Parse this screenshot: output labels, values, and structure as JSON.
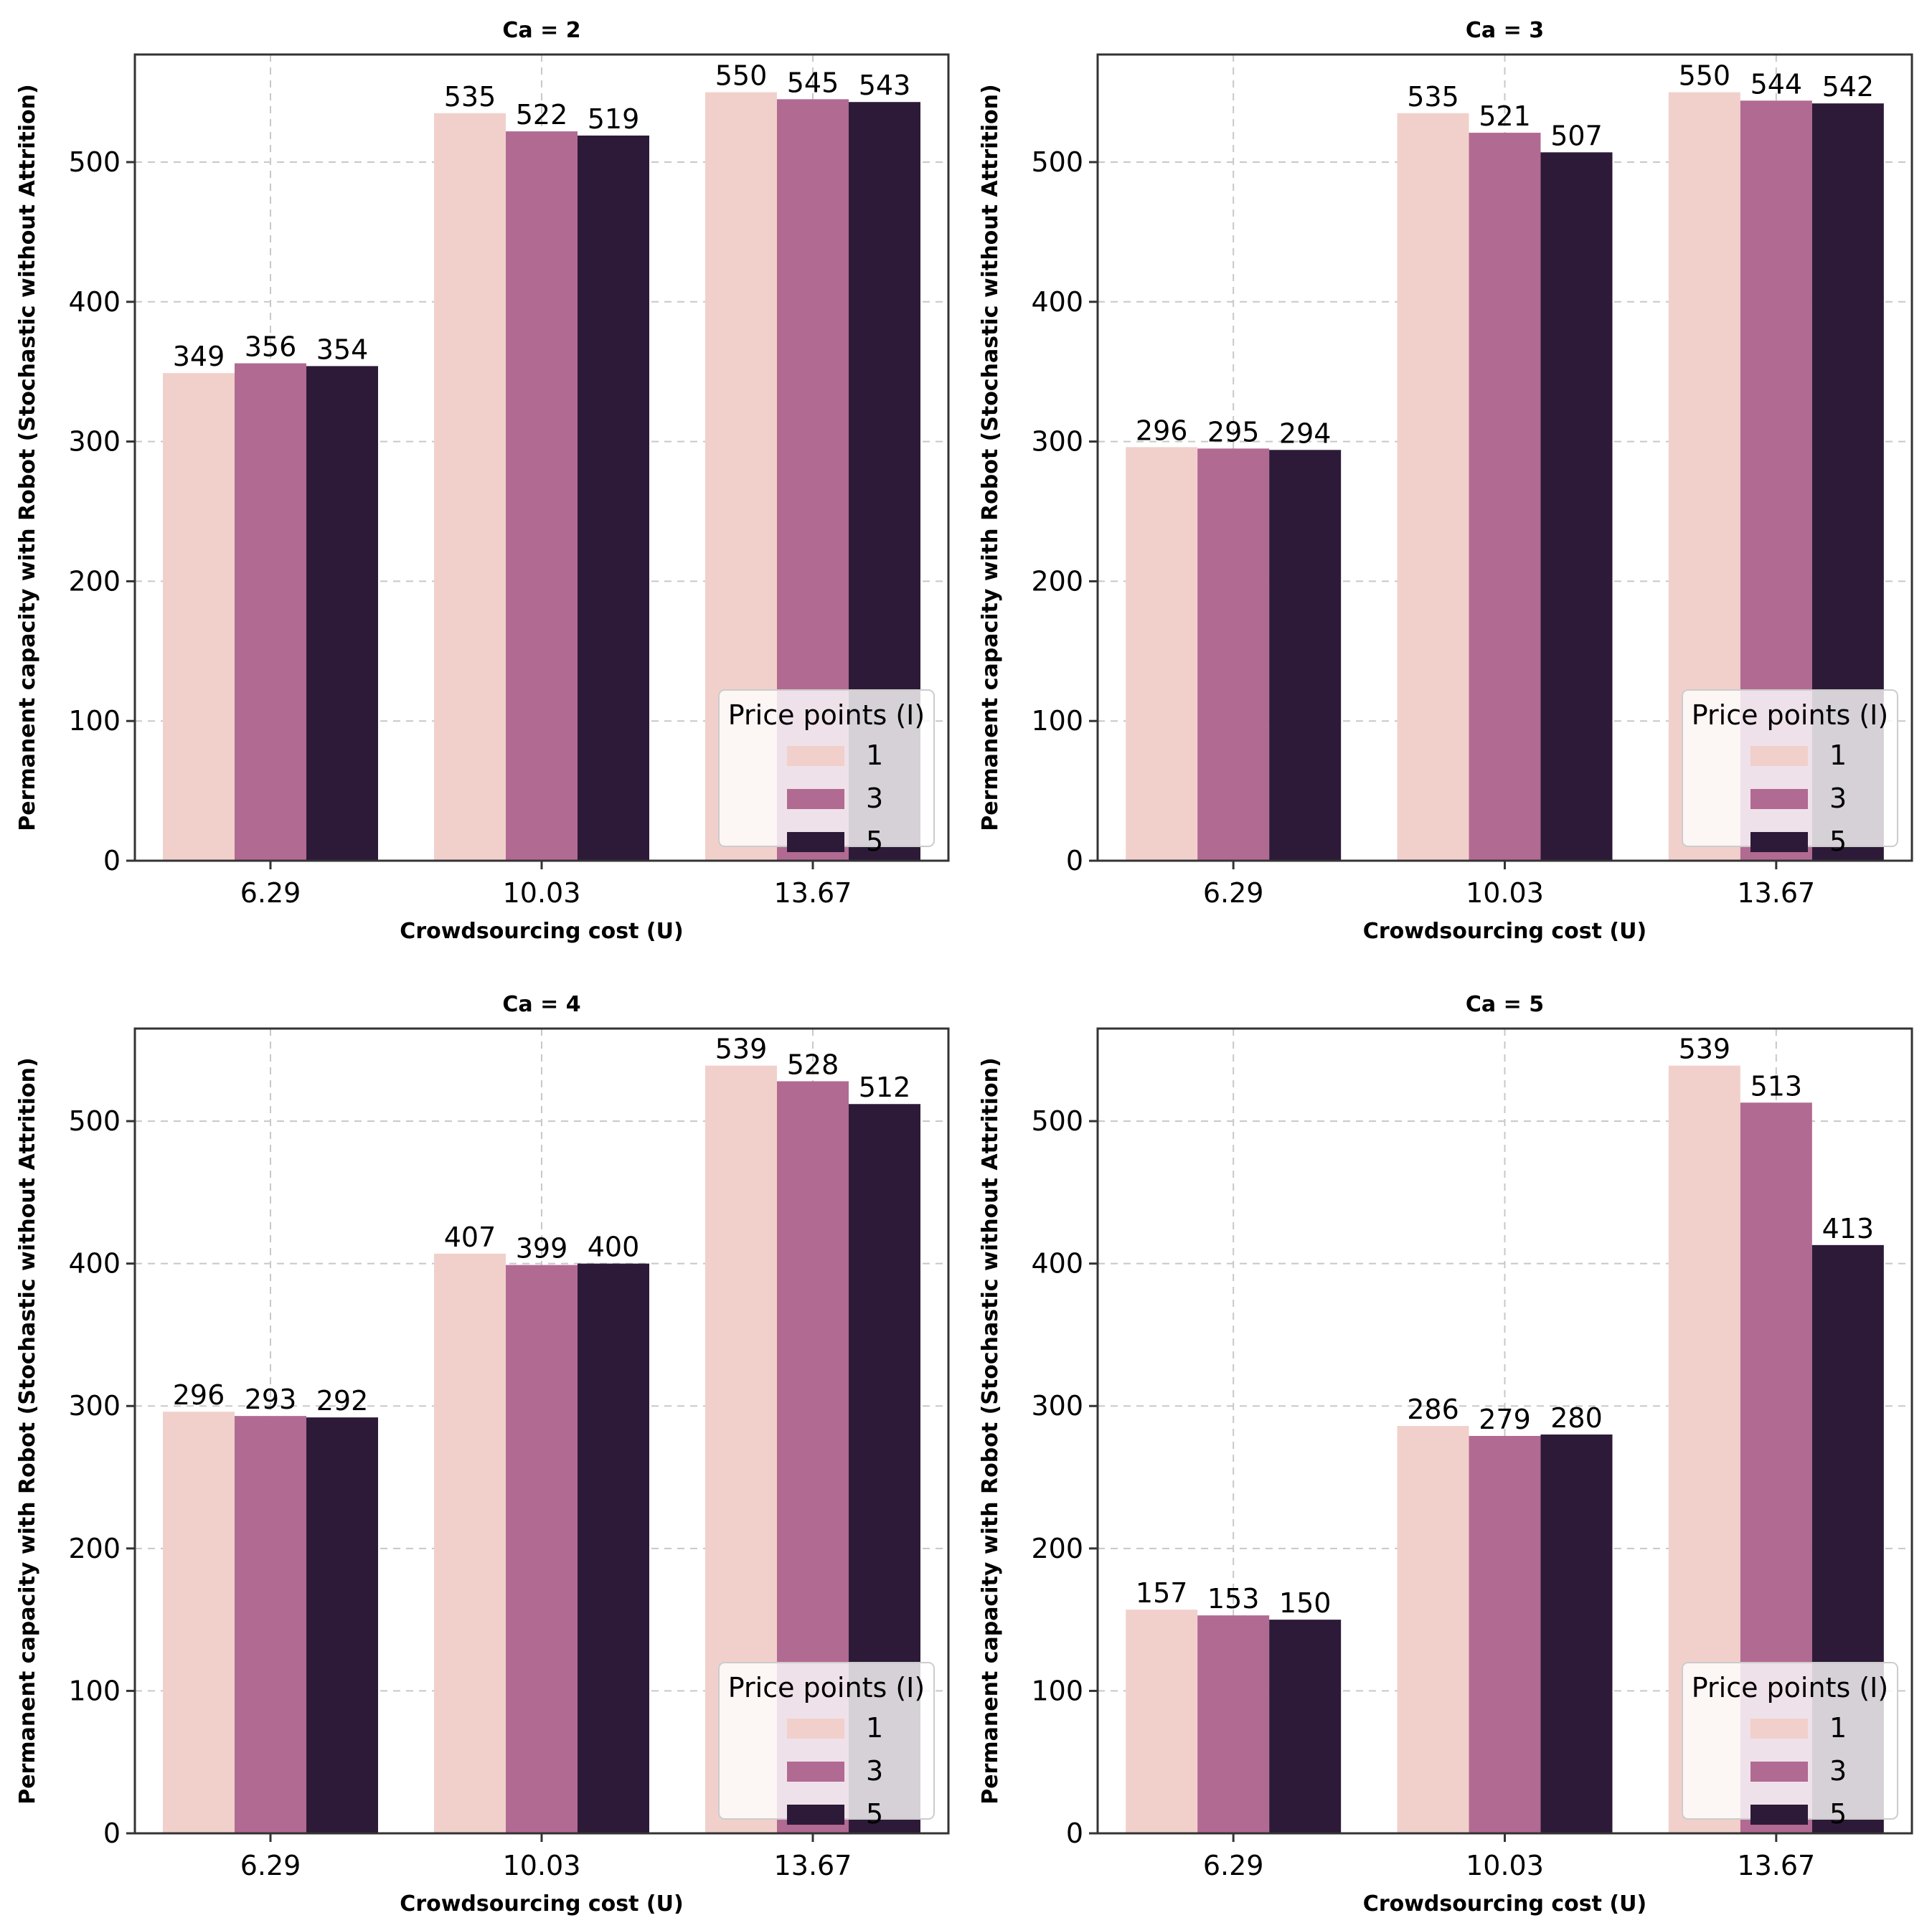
{
  "chart_data": [
    {
      "type": "bar",
      "title": "Ca = 2",
      "xlabel": "Crowdsourcing cost (U)",
      "ylabel": "Permanent capacity with Robot (Stochastic without Attrition)",
      "categories": [
        "6.29",
        "10.03",
        "13.67"
      ],
      "ylim": [
        0,
        577
      ],
      "yticks": [
        0,
        100,
        200,
        300,
        400,
        500
      ],
      "grid": true,
      "legend": {
        "title": "Price points (I)",
        "placement": "lower-right"
      },
      "series": [
        {
          "name": "1",
          "color": "#f1d0cb",
          "values": [
            349,
            535,
            550
          ]
        },
        {
          "name": "3",
          "color": "#b16a92",
          "values": [
            356,
            522,
            545
          ]
        },
        {
          "name": "5",
          "color": "#2d1a38",
          "values": [
            354,
            519,
            543
          ]
        }
      ]
    },
    {
      "type": "bar",
      "title": "Ca = 3",
      "xlabel": "Crowdsourcing cost (U)",
      "ylabel": "Permanent capacity with Robot (Stochastic without Attrition)",
      "categories": [
        "6.29",
        "10.03",
        "13.67"
      ],
      "ylim": [
        0,
        577
      ],
      "yticks": [
        0,
        100,
        200,
        300,
        400,
        500
      ],
      "grid": true,
      "legend": {
        "title": "Price points (I)",
        "placement": "lower-right"
      },
      "series": [
        {
          "name": "1",
          "color": "#f1d0cb",
          "values": [
            296,
            535,
            550
          ]
        },
        {
          "name": "3",
          "color": "#b16a92",
          "values": [
            295,
            521,
            544
          ]
        },
        {
          "name": "5",
          "color": "#2d1a38",
          "values": [
            294,
            507,
            542
          ]
        }
      ]
    },
    {
      "type": "bar",
      "title": "Ca = 4",
      "xlabel": "Crowdsourcing cost (U)",
      "ylabel": "Permanent capacity with Robot (Stochastic without Attrition)",
      "categories": [
        "6.29",
        "10.03",
        "13.67"
      ],
      "ylim": [
        0,
        565
      ],
      "yticks": [
        0,
        100,
        200,
        300,
        400,
        500
      ],
      "grid": true,
      "legend": {
        "title": "Price points (I)",
        "placement": "lower-right"
      },
      "series": [
        {
          "name": "1",
          "color": "#f1d0cb",
          "values": [
            296,
            407,
            539
          ]
        },
        {
          "name": "3",
          "color": "#b16a92",
          "values": [
            293,
            399,
            528
          ]
        },
        {
          "name": "5",
          "color": "#2d1a38",
          "values": [
            292,
            400,
            512
          ]
        }
      ]
    },
    {
      "type": "bar",
      "title": "Ca = 5",
      "xlabel": "Crowdsourcing cost (U)",
      "ylabel": "Permanent capacity with Robot (Stochastic without Attrition)",
      "categories": [
        "6.29",
        "10.03",
        "13.67"
      ],
      "ylim": [
        0,
        565
      ],
      "yticks": [
        0,
        100,
        200,
        300,
        400,
        500
      ],
      "grid": true,
      "legend": {
        "title": "Price points (I)",
        "placement": "lower-right"
      },
      "series": [
        {
          "name": "1",
          "color": "#f1d0cb",
          "values": [
            157,
            286,
            539
          ]
        },
        {
          "name": "3",
          "color": "#b16a92",
          "values": [
            153,
            279,
            513
          ]
        },
        {
          "name": "5",
          "color": "#2d1a38",
          "values": [
            150,
            280,
            413
          ]
        }
      ]
    }
  ]
}
